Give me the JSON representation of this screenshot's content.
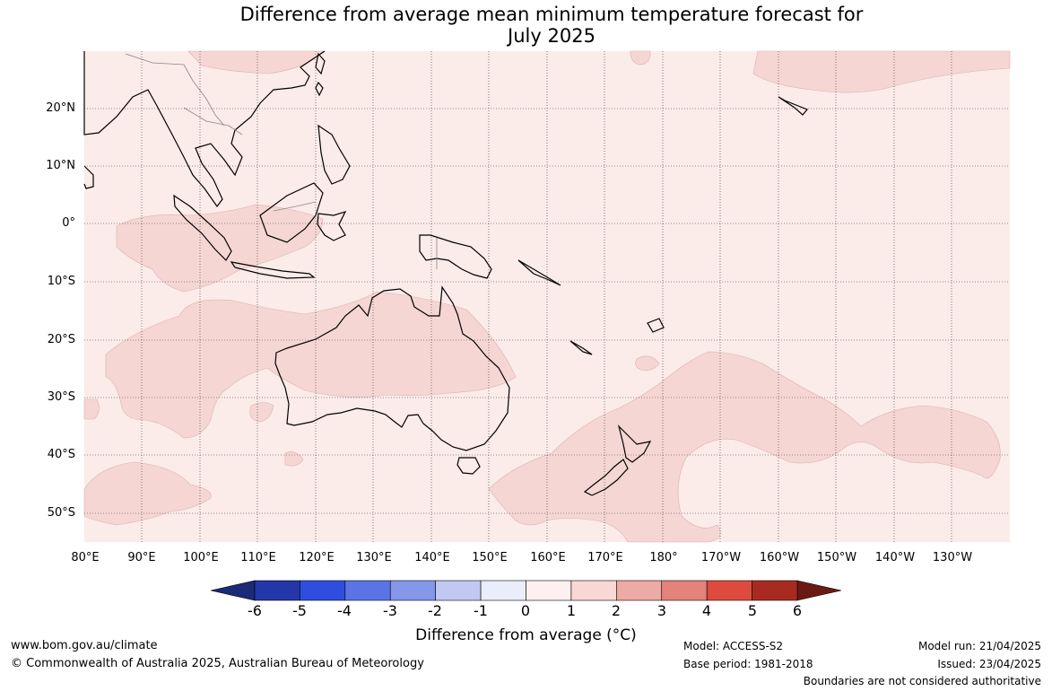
{
  "title": {
    "line1": "Difference from average mean minimum temperature forecast for",
    "line2": "July 2025"
  },
  "map": {
    "lat_labels": [
      "20°N",
      "10°N",
      "0°",
      "10°S",
      "20°S",
      "30°S",
      "40°S",
      "50°S"
    ],
    "lon_labels": [
      "80°E",
      "90°E",
      "100°E",
      "110°E",
      "120°E",
      "130°E",
      "140°E",
      "150°E",
      "160°E",
      "170°E",
      "180°",
      "170°W",
      "160°W",
      "150°W",
      "140°W",
      "130°W"
    ],
    "background_class_color": "#fbebe9",
    "anomaly_1_2_color": "#f5d6d3",
    "coast_color": "#000000",
    "border_color": "#888888"
  },
  "colorbar": {
    "ticks": [
      "-6",
      "-5",
      "-4",
      "-3",
      "-2",
      "-1",
      "0",
      "1",
      "2",
      "3",
      "4",
      "5",
      "6"
    ],
    "colors": [
      "#1b2a78",
      "#2337a8",
      "#2f4ee0",
      "#5a74e6",
      "#8497ea",
      "#c1c9f2",
      "#ebedfb",
      "#fdf0ee",
      "#f8d7d4",
      "#eeaaa4",
      "#e3837c",
      "#dc4b3e",
      "#a82b22",
      "#6a1a12"
    ],
    "label": "Difference from average (°C)"
  },
  "footer": {
    "url": "www.bom.gov.au/climate",
    "copyright": "© Commonwealth of Australia 2025, Australian Bureau of Meteorology",
    "model": "Model: ACCESS-S2",
    "base_period": "Base period: 1981-2018",
    "model_run": "Model run: 21/04/2025",
    "issued": "Issued: 23/04/2025",
    "disclaimer": "Boundaries are not considered authoritative"
  }
}
